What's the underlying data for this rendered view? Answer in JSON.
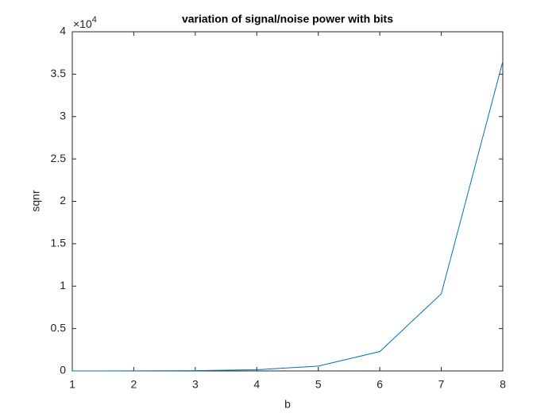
{
  "chart_data": {
    "type": "line",
    "title": "variation of signal/noise power with bits",
    "x_label": "b",
    "y_label": "sqnr",
    "y_multiplier": {
      "base": "×10",
      "exponent": "4"
    },
    "x": [
      1,
      2,
      3,
      4,
      5,
      6,
      7,
      8
    ],
    "series": [
      {
        "name": "sqnr",
        "color": "#0072bd",
        "values": [
          0.0002,
          0.0009,
          0.0036,
          0.0143,
          0.057,
          0.228,
          0.91,
          3.65
        ]
      }
    ],
    "xlim": [
      1,
      8
    ],
    "xticks": [
      1,
      2,
      3,
      4,
      5,
      6,
      7,
      8
    ],
    "ylim": [
      0,
      4
    ],
    "yticks": [
      0,
      0.5,
      1,
      1.5,
      2,
      2.5,
      3,
      3.5,
      4
    ],
    "grid": false
  }
}
